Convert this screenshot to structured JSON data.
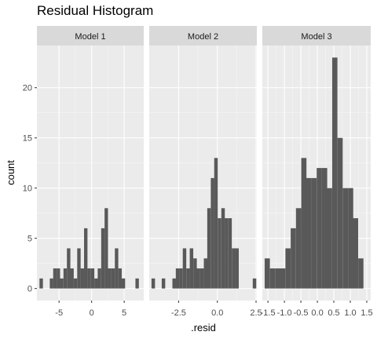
{
  "chart_data": {
    "type": "bar",
    "title": "Residual Histogram",
    "xlabel": ".resid",
    "ylabel": "count",
    "ylim": [
      -1.2,
      24.2
    ],
    "yticks": [
      0,
      5,
      10,
      15,
      20
    ],
    "facets": [
      {
        "label": "Model 1",
        "xlim": [
          -8.4,
          8.0
        ],
        "xticks": [
          -5,
          0,
          5
        ],
        "binwidth": 0.526,
        "bins": [
          {
            "x": -7.74,
            "count": 1
          },
          {
            "x": -6.16,
            "count": 1
          },
          {
            "x": -5.64,
            "count": 2
          },
          {
            "x": -5.11,
            "count": 2
          },
          {
            "x": -4.59,
            "count": 1
          },
          {
            "x": -4.06,
            "count": 2
          },
          {
            "x": -3.53,
            "count": 4
          },
          {
            "x": -3.01,
            "count": 2
          },
          {
            "x": -2.48,
            "count": 1
          },
          {
            "x": -1.95,
            "count": 4
          },
          {
            "x": -1.43,
            "count": 2
          },
          {
            "x": -0.9,
            "count": 6
          },
          {
            "x": -0.38,
            "count": 2
          },
          {
            "x": 0.15,
            "count": 2
          },
          {
            "x": 0.68,
            "count": 1
          },
          {
            "x": 1.2,
            "count": 2
          },
          {
            "x": 1.73,
            "count": 6
          },
          {
            "x": 2.25,
            "count": 8
          },
          {
            "x": 2.78,
            "count": 2
          },
          {
            "x": 3.31,
            "count": 2
          },
          {
            "x": 3.83,
            "count": 4
          },
          {
            "x": 4.36,
            "count": 2
          },
          {
            "x": 4.88,
            "count": 1
          },
          {
            "x": 6.99,
            "count": 1
          }
        ]
      },
      {
        "label": "Model 2",
        "xlim": [
          -4.4,
          2.55
        ],
        "xticks": [
          -2.5,
          0.0,
          2.5
        ],
        "xtick_labels": [
          "-2.5",
          "0.0",
          "2.5"
        ],
        "binwidth": 0.226,
        "bins": [
          {
            "x": -4.14,
            "count": 1
          },
          {
            "x": -3.48,
            "count": 1
          },
          {
            "x": -2.79,
            "count": 1
          },
          {
            "x": -2.57,
            "count": 2
          },
          {
            "x": -2.35,
            "count": 2
          },
          {
            "x": -2.12,
            "count": 4
          },
          {
            "x": -1.89,
            "count": 2
          },
          {
            "x": -1.67,
            "count": 4
          },
          {
            "x": -1.44,
            "count": 3
          },
          {
            "x": -1.22,
            "count": 2
          },
          {
            "x": -0.99,
            "count": 2
          },
          {
            "x": -0.76,
            "count": 3
          },
          {
            "x": -0.54,
            "count": 8
          },
          {
            "x": -0.31,
            "count": 11
          },
          {
            "x": -0.09,
            "count": 13
          },
          {
            "x": 0.14,
            "count": 7
          },
          {
            "x": 0.37,
            "count": 8
          },
          {
            "x": 0.59,
            "count": 7
          },
          {
            "x": 0.82,
            "count": 7
          },
          {
            "x": 1.05,
            "count": 4
          },
          {
            "x": 1.27,
            "count": 4
          },
          {
            "x": 2.4,
            "count": 1
          }
        ]
      },
      {
        "label": "Model 3",
        "xlim": [
          -1.67,
          1.62
        ],
        "xticks": [
          -1.5,
          -1.0,
          -0.5,
          0.0,
          0.5,
          1.0,
          1.5
        ],
        "xtick_labels": [
          "-1.5",
          "-1.0",
          "-0.5",
          "0.0",
          "0.5",
          "1.0",
          "1.5"
        ],
        "binwidth": 0.158,
        "bins": [
          {
            "x": -1.52,
            "count": 3
          },
          {
            "x": -1.36,
            "count": 2
          },
          {
            "x": -1.2,
            "count": 2
          },
          {
            "x": -1.05,
            "count": 2
          },
          {
            "x": -0.89,
            "count": 4
          },
          {
            "x": -0.73,
            "count": 6
          },
          {
            "x": -0.57,
            "count": 8
          },
          {
            "x": -0.41,
            "count": 13
          },
          {
            "x": -0.26,
            "count": 11
          },
          {
            "x": -0.1,
            "count": 11
          },
          {
            "x": 0.06,
            "count": 12
          },
          {
            "x": 0.22,
            "count": 12
          },
          {
            "x": 0.37,
            "count": 10
          },
          {
            "x": 0.53,
            "count": 23
          },
          {
            "x": 0.69,
            "count": 15
          },
          {
            "x": 0.85,
            "count": 10
          },
          {
            "x": 1.01,
            "count": 10
          },
          {
            "x": 1.16,
            "count": 7
          },
          {
            "x": 1.32,
            "count": 3
          }
        ]
      }
    ],
    "grid": true,
    "legend": "none",
    "colors": {
      "panel_bg": "#ebebeb",
      "strip_bg": "#d9d9d9",
      "grid_major": "#ffffff",
      "grid_minor": "#f5f5f5",
      "bar": "#595959"
    }
  }
}
